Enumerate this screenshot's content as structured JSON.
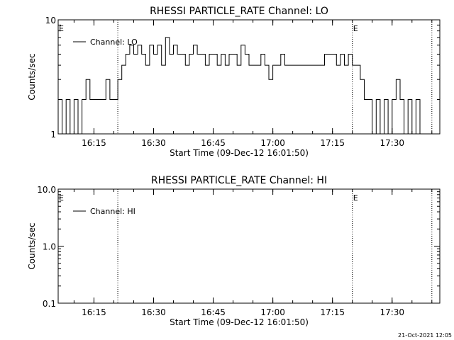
{
  "stamp": "21-Oct-2021 12:05",
  "chart_data": [
    {
      "type": "line",
      "title": "RHESSI PARTICLE_RATE Channel: LO",
      "xlabel": "Start Time (09-Dec-12 16:01:50)",
      "ylabel": "Counts/sec",
      "yscale": "log",
      "ylim": [
        1,
        10
      ],
      "xlim": [
        "16:06",
        "17:42"
      ],
      "yticks": [
        "1",
        "10"
      ],
      "xticks": [
        "16:15",
        "16:30",
        "16:45",
        "17:00",
        "17:15",
        "17:30"
      ],
      "markers": [
        {
          "x": "16:21",
          "label": ""
        },
        {
          "x": "17:20",
          "label": "E"
        },
        {
          "x": "17:40",
          "label": ""
        }
      ],
      "start_marker_label": "E",
      "grid": false,
      "legend": "top-left",
      "series": [
        {
          "name": "Channel: LO",
          "x": [
            "16:06",
            "16:07",
            "16:08",
            "16:09",
            "16:10",
            "16:11",
            "16:12",
            "16:13",
            "16:14",
            "16:15",
            "16:16",
            "16:17",
            "16:18",
            "16:19",
            "16:20",
            "16:21",
            "16:22",
            "16:23",
            "16:24",
            "16:25",
            "16:26",
            "16:27",
            "16:28",
            "16:29",
            "16:30",
            "16:31",
            "16:32",
            "16:33",
            "16:34",
            "16:35",
            "16:36",
            "16:37",
            "16:38",
            "16:39",
            "16:40",
            "16:41",
            "16:42",
            "16:43",
            "16:44",
            "16:45",
            "16:46",
            "16:47",
            "16:48",
            "16:49",
            "16:50",
            "16:51",
            "16:52",
            "16:53",
            "16:54",
            "16:55",
            "16:56",
            "16:57",
            "16:58",
            "16:59",
            "17:00",
            "17:01",
            "17:02",
            "17:03",
            "17:04",
            "17:05",
            "17:06",
            "17:07",
            "17:08",
            "17:09",
            "17:10",
            "17:11",
            "17:12",
            "17:13",
            "17:14",
            "17:15",
            "17:16",
            "17:17",
            "17:18",
            "17:19",
            "17:20",
            "17:21",
            "17:22",
            "17:23",
            "17:24",
            "17:25",
            "17:26",
            "17:27",
            "17:28",
            "17:29",
            "17:30",
            "17:31",
            "17:32",
            "17:33",
            "17:34",
            "17:35",
            "17:36",
            "17:37",
            "17:38",
            "17:39",
            "17:40"
          ],
          "values": [
            2,
            1,
            2,
            1,
            2,
            1,
            2,
            3,
            2,
            2,
            2,
            2,
            3,
            2,
            2,
            3,
            4,
            5,
            6,
            5,
            6,
            5,
            4,
            6,
            5,
            6,
            4,
            7,
            5,
            6,
            5,
            5,
            4,
            5,
            6,
            5,
            5,
            4,
            5,
            5,
            4,
            5,
            4,
            5,
            5,
            4,
            6,
            5,
            4,
            4,
            4,
            5,
            4,
            3,
            4,
            4,
            5,
            4,
            4,
            4,
            4,
            4,
            4,
            4,
            4,
            4,
            4,
            5,
            5,
            5,
            4,
            5,
            4,
            5,
            4,
            4,
            3,
            2,
            2,
            1,
            2,
            1,
            2,
            1,
            2,
            3,
            2,
            1,
            2,
            1,
            2,
            1,
            1,
            1,
            1
          ]
        }
      ]
    },
    {
      "type": "line",
      "title": "RHESSI PARTICLE_RATE Channel: HI",
      "xlabel": "Start Time (09-Dec-12 16:01:50)",
      "ylabel": "Counts/sec",
      "yscale": "log",
      "ylim": [
        0.1,
        10
      ],
      "xlim": [
        "16:06",
        "17:42"
      ],
      "yticks": [
        "0.1",
        "1.0",
        "10.0"
      ],
      "xticks": [
        "16:15",
        "16:30",
        "16:45",
        "17:00",
        "17:15",
        "17:30"
      ],
      "markers": [
        {
          "x": "16:21",
          "label": ""
        },
        {
          "x": "17:20",
          "label": "E"
        },
        {
          "x": "17:40",
          "label": ""
        }
      ],
      "start_marker_label": "E",
      "grid": false,
      "legend": "top-left",
      "series": [
        {
          "name": "Channel: HI",
          "x": [],
          "values": []
        }
      ]
    }
  ]
}
